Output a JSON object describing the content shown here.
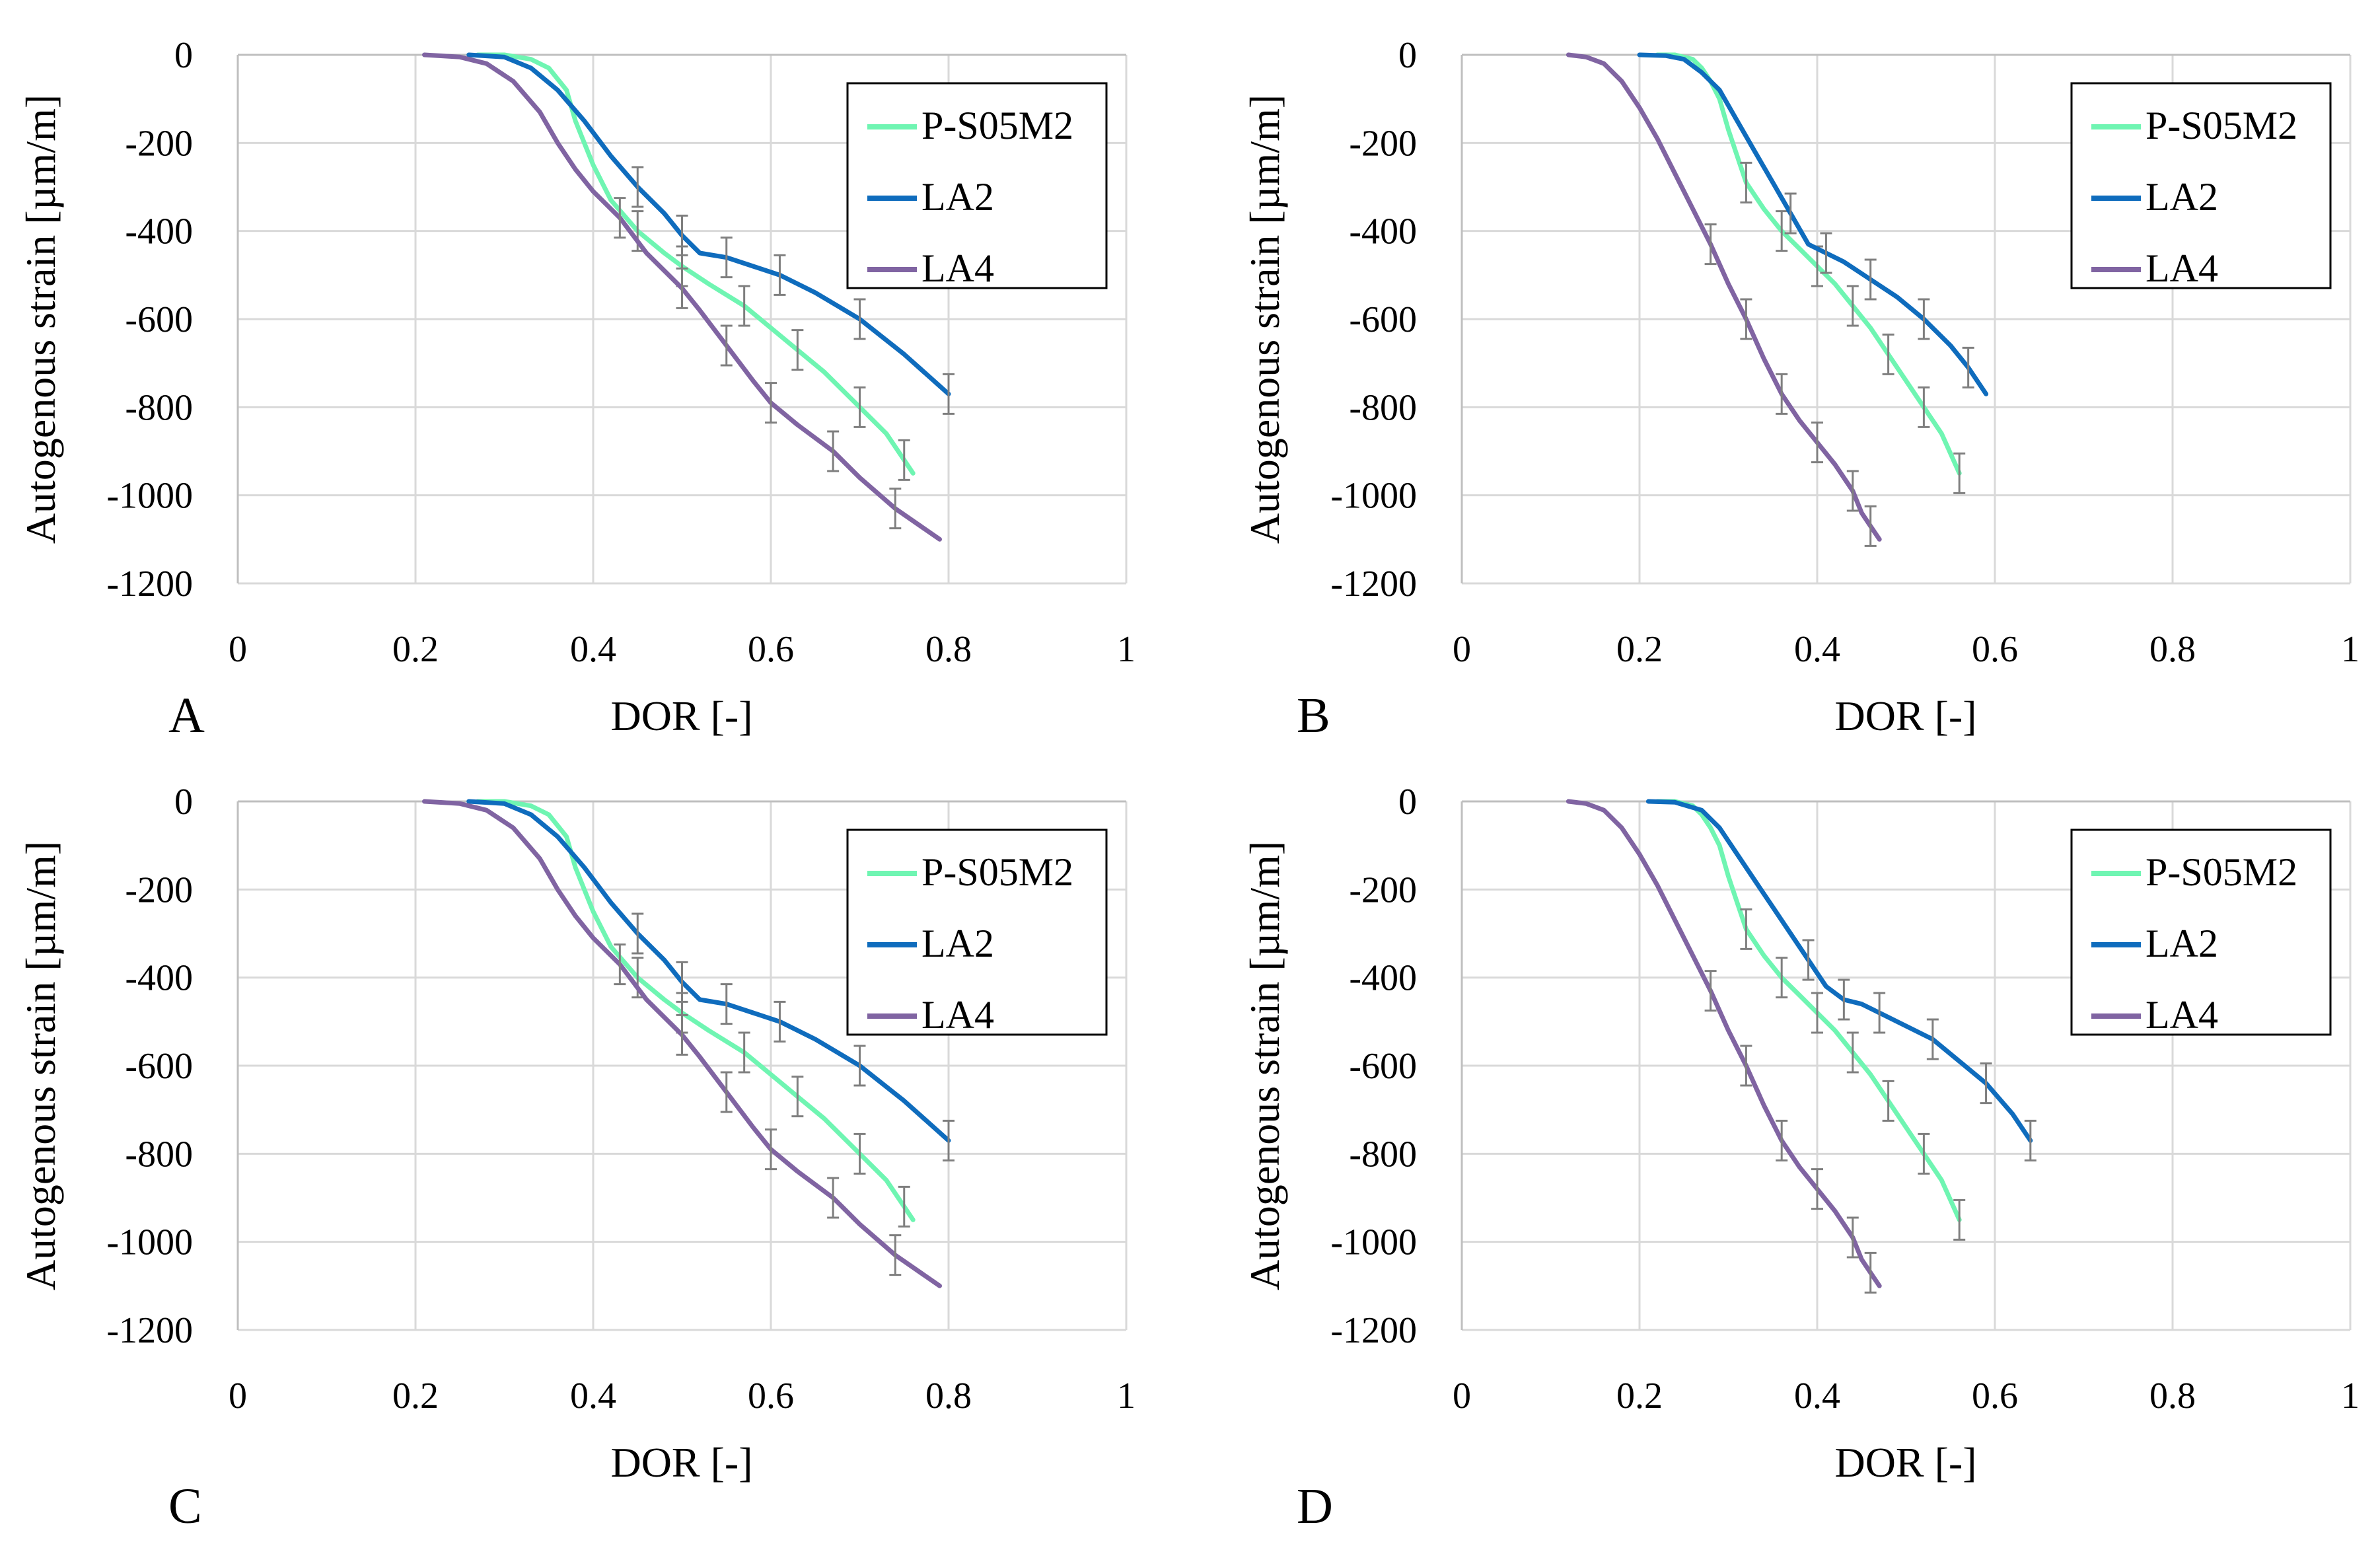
{
  "colors": {
    "P-S05M2": "#6ff5b2",
    "LA2": "#0f6cbd",
    "LA4": "#8064a2",
    "errorbar": "#7f7f7f"
  },
  "chart_data": [
    {
      "type": "line",
      "panel": "A",
      "xlabel": "DOR [-]",
      "ylabel": "Autogenous strain [µm/m]",
      "xlim": [
        0,
        1
      ],
      "ylim": [
        -1200,
        0
      ],
      "xticks": [
        0,
        0.2,
        0.4,
        0.6,
        0.8,
        1
      ],
      "xtick_labels": [
        "0",
        "0.2",
        "0.4",
        "0.6",
        "0.8",
        "1"
      ],
      "yticks": [
        0,
        -200,
        -400,
        -600,
        -800,
        -1000,
        -1200
      ],
      "ytick_labels": [
        "0",
        "-200",
        "-400",
        "-600",
        "-800",
        "-1000",
        "-1200"
      ],
      "grid": true,
      "legend_position": "top-right",
      "series": [
        {
          "name": "P-S05M2",
          "x": [
            0.27,
            0.3,
            0.33,
            0.35,
            0.37,
            0.38,
            0.4,
            0.42,
            0.45,
            0.48,
            0.5,
            0.53,
            0.57,
            0.6,
            0.63,
            0.66,
            0.7,
            0.73,
            0.75,
            0.76
          ],
          "y": [
            0,
            0,
            -10,
            -30,
            -80,
            -150,
            -250,
            -330,
            -400,
            -450,
            -480,
            -520,
            -570,
            -620,
            -670,
            -720,
            -800,
            -860,
            -920,
            -950
          ]
        },
        {
          "name": "LA2",
          "x": [
            0.26,
            0.3,
            0.33,
            0.36,
            0.39,
            0.42,
            0.45,
            0.48,
            0.5,
            0.52,
            0.55,
            0.58,
            0.61,
            0.65,
            0.7,
            0.75,
            0.8
          ],
          "y": [
            0,
            -5,
            -30,
            -80,
            -150,
            -230,
            -300,
            -360,
            -410,
            -450,
            -460,
            -480,
            -500,
            -540,
            -600,
            -680,
            -770
          ]
        },
        {
          "name": "LA4",
          "x": [
            0.21,
            0.25,
            0.28,
            0.31,
            0.34,
            0.36,
            0.38,
            0.4,
            0.43,
            0.46,
            0.5,
            0.52,
            0.55,
            0.58,
            0.6,
            0.63,
            0.67,
            0.7,
            0.74,
            0.79
          ],
          "y": [
            0,
            -5,
            -20,
            -60,
            -130,
            -200,
            -260,
            -310,
            -370,
            -450,
            -530,
            -580,
            -660,
            -740,
            -790,
            -840,
            -900,
            -960,
            -1030,
            -1100
          ]
        }
      ]
    },
    {
      "type": "line",
      "panel": "B",
      "xlabel": "DOR [-]",
      "ylabel": "Autogenous strain [µm/m]",
      "xlim": [
        0,
        1
      ],
      "ylim": [
        -1200,
        0
      ],
      "xticks": [
        0,
        0.2,
        0.4,
        0.6,
        0.8,
        1
      ],
      "xtick_labels": [
        "0",
        "0.2",
        "0.4",
        "0.6",
        "0.8",
        "1"
      ],
      "yticks": [
        0,
        -200,
        -400,
        -600,
        -800,
        -1000,
        -1200
      ],
      "ytick_labels": [
        "0",
        "-200",
        "-400",
        "-600",
        "-800",
        "-1000",
        "-1200"
      ],
      "grid": true,
      "legend_position": "top-right",
      "series": [
        {
          "name": "P-S05M2",
          "x": [
            0.22,
            0.24,
            0.26,
            0.27,
            0.28,
            0.29,
            0.3,
            0.31,
            0.32,
            0.34,
            0.36,
            0.38,
            0.4,
            0.42,
            0.44,
            0.46,
            0.48,
            0.5,
            0.52,
            0.54,
            0.56
          ],
          "y": [
            0,
            0,
            -10,
            -30,
            -60,
            -100,
            -170,
            -230,
            -290,
            -350,
            -400,
            -440,
            -480,
            -520,
            -570,
            -620,
            -680,
            -740,
            -800,
            -860,
            -950
          ]
        },
        {
          "name": "LA2",
          "x": [
            0.2,
            0.23,
            0.25,
            0.27,
            0.29,
            0.31,
            0.33,
            0.35,
            0.37,
            0.39,
            0.41,
            0.43,
            0.46,
            0.49,
            0.52,
            0.55,
            0.57,
            0.59
          ],
          "y": [
            0,
            -2,
            -10,
            -40,
            -80,
            -150,
            -220,
            -290,
            -360,
            -430,
            -450,
            -470,
            -510,
            -550,
            -600,
            -660,
            -710,
            -770
          ]
        },
        {
          "name": "LA4",
          "x": [
            0.12,
            0.14,
            0.16,
            0.18,
            0.2,
            0.22,
            0.24,
            0.26,
            0.28,
            0.3,
            0.32,
            0.34,
            0.36,
            0.38,
            0.4,
            0.42,
            0.44,
            0.45,
            0.46,
            0.47
          ],
          "y": [
            0,
            -5,
            -20,
            -60,
            -120,
            -190,
            -270,
            -350,
            -430,
            -520,
            -600,
            -690,
            -770,
            -830,
            -880,
            -930,
            -990,
            -1040,
            -1070,
            -1100
          ]
        }
      ]
    },
    {
      "type": "line",
      "panel": "C",
      "xlabel": "DOR [-]",
      "ylabel": "Autogenous strain [µm/m]",
      "xlim": [
        0,
        1
      ],
      "ylim": [
        -1200,
        0
      ],
      "xticks": [
        0,
        0.2,
        0.4,
        0.6,
        0.8,
        1
      ],
      "xtick_labels": [
        "0",
        "0.2",
        "0.4",
        "0.6",
        "0.8",
        "1"
      ],
      "yticks": [
        0,
        -200,
        -400,
        -600,
        -800,
        -1000,
        -1200
      ],
      "ytick_labels": [
        "0",
        "-200",
        "-400",
        "-600",
        "-800",
        "-1000",
        "-1200"
      ],
      "grid": true,
      "legend_position": "top-right",
      "series": [
        {
          "name": "P-S05M2",
          "x": [
            0.27,
            0.3,
            0.33,
            0.35,
            0.37,
            0.38,
            0.4,
            0.42,
            0.45,
            0.48,
            0.5,
            0.53,
            0.57,
            0.6,
            0.63,
            0.66,
            0.7,
            0.73,
            0.75,
            0.76
          ],
          "y": [
            0,
            0,
            -10,
            -30,
            -80,
            -150,
            -250,
            -330,
            -400,
            -450,
            -480,
            -520,
            -570,
            -620,
            -670,
            -720,
            -800,
            -860,
            -920,
            -950
          ]
        },
        {
          "name": "LA2",
          "x": [
            0.26,
            0.3,
            0.33,
            0.36,
            0.39,
            0.42,
            0.45,
            0.48,
            0.5,
            0.52,
            0.55,
            0.58,
            0.61,
            0.65,
            0.7,
            0.75,
            0.8
          ],
          "y": [
            0,
            -5,
            -30,
            -80,
            -150,
            -230,
            -300,
            -360,
            -410,
            -450,
            -460,
            -480,
            -500,
            -540,
            -600,
            -680,
            -770
          ]
        },
        {
          "name": "LA4",
          "x": [
            0.21,
            0.25,
            0.28,
            0.31,
            0.34,
            0.36,
            0.38,
            0.4,
            0.43,
            0.46,
            0.5,
            0.52,
            0.55,
            0.58,
            0.6,
            0.63,
            0.67,
            0.7,
            0.74,
            0.79
          ],
          "y": [
            0,
            -5,
            -20,
            -60,
            -130,
            -200,
            -260,
            -310,
            -370,
            -450,
            -530,
            -580,
            -660,
            -740,
            -790,
            -840,
            -900,
            -960,
            -1030,
            -1100
          ]
        }
      ]
    },
    {
      "type": "line",
      "panel": "D",
      "xlabel": "DOR [-]",
      "ylabel": "Autogenous strain [µm/m]",
      "xlim": [
        0,
        1
      ],
      "ylim": [
        -1200,
        0
      ],
      "xticks": [
        0,
        0.2,
        0.4,
        0.6,
        0.8,
        1
      ],
      "xtick_labels": [
        "0",
        "0.2",
        "0.4",
        "0.6",
        "0.8",
        "1"
      ],
      "yticks": [
        0,
        -200,
        -400,
        -600,
        -800,
        -1000,
        -1200
      ],
      "ytick_labels": [
        "0",
        "-200",
        "-400",
        "-600",
        "-800",
        "-1000",
        "-1200"
      ],
      "grid": true,
      "legend_position": "top-right",
      "series": [
        {
          "name": "P-S05M2",
          "x": [
            0.22,
            0.24,
            0.26,
            0.27,
            0.28,
            0.29,
            0.3,
            0.31,
            0.32,
            0.34,
            0.36,
            0.38,
            0.4,
            0.42,
            0.44,
            0.46,
            0.48,
            0.5,
            0.52,
            0.54,
            0.56
          ],
          "y": [
            0,
            0,
            -10,
            -30,
            -60,
            -100,
            -170,
            -230,
            -290,
            -350,
            -400,
            -440,
            -480,
            -520,
            -570,
            -620,
            -680,
            -740,
            -800,
            -860,
            -950
          ]
        },
        {
          "name": "LA2",
          "x": [
            0.21,
            0.24,
            0.27,
            0.29,
            0.31,
            0.33,
            0.35,
            0.37,
            0.39,
            0.41,
            0.43,
            0.45,
            0.47,
            0.5,
            0.53,
            0.56,
            0.59,
            0.62,
            0.64
          ],
          "y": [
            0,
            -2,
            -20,
            -60,
            -120,
            -180,
            -240,
            -300,
            -360,
            -420,
            -450,
            -460,
            -480,
            -510,
            -540,
            -590,
            -640,
            -710,
            -770
          ]
        },
        {
          "name": "LA4",
          "x": [
            0.12,
            0.14,
            0.16,
            0.18,
            0.2,
            0.22,
            0.24,
            0.26,
            0.28,
            0.3,
            0.32,
            0.34,
            0.36,
            0.38,
            0.4,
            0.42,
            0.44,
            0.45,
            0.46,
            0.47
          ],
          "y": [
            0,
            -5,
            -20,
            -60,
            -120,
            -190,
            -270,
            -350,
            -430,
            -520,
            -600,
            -690,
            -770,
            -830,
            -880,
            -930,
            -990,
            -1040,
            -1070,
            -1100
          ]
        }
      ]
    }
  ]
}
